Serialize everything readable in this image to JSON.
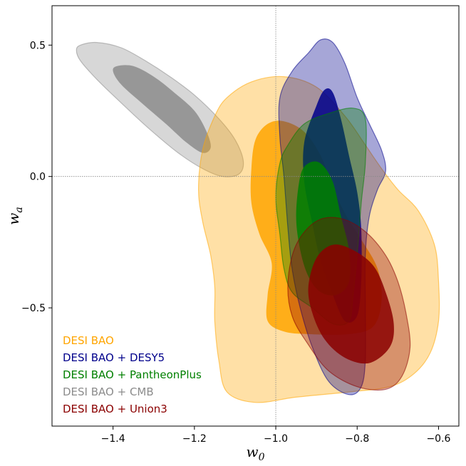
{
  "chart_data": {
    "type": "contour",
    "title": "",
    "xlabel": "w_0",
    "ylabel": "w_a",
    "xlim": [
      -1.55,
      -0.55
    ],
    "ylim": [
      -0.95,
      0.65
    ],
    "xticks": [
      {
        "value": -1.4,
        "label": "−1.4"
      },
      {
        "value": -1.2,
        "label": "−1.2"
      },
      {
        "value": -1.0,
        "label": "−1.0"
      },
      {
        "value": -0.8,
        "label": "−0.8"
      },
      {
        "value": -0.6,
        "label": "−0.6"
      }
    ],
    "yticks": [
      {
        "value": 0.5,
        "label": "0.5"
      },
      {
        "value": 0.0,
        "label": "0.0"
      },
      {
        "value": -0.5,
        "label": "−0.5"
      }
    ],
    "reference_lines": {
      "x": -1.0,
      "y": 0.0
    },
    "legend_position": "bottom-left",
    "series": [
      {
        "name": "DESI BAO + CMB",
        "color": "#8c8c8c",
        "outer_contour": [
          [
            -1.48,
            0.5
          ],
          [
            -1.44,
            0.51
          ],
          [
            -1.38,
            0.49
          ],
          [
            -1.32,
            0.44
          ],
          [
            -1.26,
            0.38
          ],
          [
            -1.2,
            0.31
          ],
          [
            -1.14,
            0.22
          ],
          [
            -1.1,
            0.14
          ],
          [
            -1.08,
            0.06
          ],
          [
            -1.09,
            0.01
          ],
          [
            -1.13,
            0.0
          ],
          [
            -1.18,
            0.03
          ],
          [
            -1.24,
            0.09
          ],
          [
            -1.31,
            0.18
          ],
          [
            -1.38,
            0.28
          ],
          [
            -1.44,
            0.37
          ],
          [
            -1.48,
            0.44
          ],
          [
            -1.49,
            0.48
          ]
        ],
        "inner_contour": [
          [
            -1.39,
            0.42
          ],
          [
            -1.35,
            0.42
          ],
          [
            -1.3,
            0.38
          ],
          [
            -1.25,
            0.32
          ],
          [
            -1.2,
            0.25
          ],
          [
            -1.17,
            0.17
          ],
          [
            -1.16,
            0.11
          ],
          [
            -1.18,
            0.09
          ],
          [
            -1.22,
            0.13
          ],
          [
            -1.27,
            0.2
          ],
          [
            -1.33,
            0.28
          ],
          [
            -1.38,
            0.35
          ],
          [
            -1.4,
            0.4
          ]
        ]
      },
      {
        "name": "DESI BAO",
        "color": "#ffa500",
        "outer_contour": [
          [
            -1.12,
            0.3
          ],
          [
            -1.06,
            0.36
          ],
          [
            -0.98,
            0.38
          ],
          [
            -0.9,
            0.34
          ],
          [
            -0.83,
            0.23
          ],
          [
            -0.78,
            0.12
          ],
          [
            -0.74,
            0.03
          ],
          [
            -0.7,
            -0.05
          ],
          [
            -0.65,
            -0.13
          ],
          [
            -0.61,
            -0.26
          ],
          [
            -0.6,
            -0.4
          ],
          [
            -0.6,
            -0.55
          ],
          [
            -0.62,
            -0.67
          ],
          [
            -0.66,
            -0.75
          ],
          [
            -0.72,
            -0.8
          ],
          [
            -0.82,
            -0.82
          ],
          [
            -0.95,
            -0.84
          ],
          [
            -1.05,
            -0.86
          ],
          [
            -1.12,
            -0.82
          ],
          [
            -1.14,
            -0.7
          ],
          [
            -1.15,
            -0.55
          ],
          [
            -1.15,
            -0.42
          ],
          [
            -1.16,
            -0.3
          ],
          [
            -1.18,
            -0.17
          ],
          [
            -1.19,
            -0.05
          ],
          [
            -1.18,
            0.1
          ],
          [
            -1.15,
            0.23
          ]
        ],
        "inner_contour": [
          [
            -1.02,
            0.2
          ],
          [
            -0.98,
            0.21
          ],
          [
            -0.93,
            0.17
          ],
          [
            -0.89,
            0.08
          ],
          [
            -0.86,
            -0.04
          ],
          [
            -0.83,
            -0.14
          ],
          [
            -0.79,
            -0.24
          ],
          [
            -0.75,
            -0.35
          ],
          [
            -0.74,
            -0.47
          ],
          [
            -0.76,
            -0.57
          ],
          [
            -0.82,
            -0.6
          ],
          [
            -0.92,
            -0.6
          ],
          [
            -0.98,
            -0.59
          ],
          [
            -1.02,
            -0.55
          ],
          [
            -1.02,
            -0.45
          ],
          [
            -1.01,
            -0.33
          ],
          [
            -1.04,
            -0.22
          ],
          [
            -1.06,
            -0.1
          ],
          [
            -1.06,
            0.03
          ],
          [
            -1.05,
            0.14
          ]
        ]
      },
      {
        "name": "DESI BAO + DESY5",
        "color": "#00008b",
        "outer_contour": [
          [
            -0.92,
            0.47
          ],
          [
            -0.89,
            0.52
          ],
          [
            -0.86,
            0.51
          ],
          [
            -0.83,
            0.43
          ],
          [
            -0.8,
            0.3
          ],
          [
            -0.77,
            0.2
          ],
          [
            -0.74,
            0.1
          ],
          [
            -0.73,
            0.02
          ],
          [
            -0.75,
            -0.05
          ],
          [
            -0.77,
            -0.15
          ],
          [
            -0.78,
            -0.3
          ],
          [
            -0.78,
            -0.5
          ],
          [
            -0.78,
            -0.7
          ],
          [
            -0.79,
            -0.8
          ],
          [
            -0.82,
            -0.83
          ],
          [
            -0.87,
            -0.78
          ],
          [
            -0.91,
            -0.65
          ],
          [
            -0.94,
            -0.5
          ],
          [
            -0.96,
            -0.35
          ],
          [
            -0.97,
            -0.2
          ],
          [
            -0.98,
            0.0
          ],
          [
            -0.99,
            0.15
          ],
          [
            -0.99,
            0.3
          ],
          [
            -0.96,
            0.4
          ]
        ],
        "inner_contour": [
          [
            -0.9,
            0.27
          ],
          [
            -0.88,
            0.33
          ],
          [
            -0.86,
            0.32
          ],
          [
            -0.84,
            0.22
          ],
          [
            -0.82,
            0.08
          ],
          [
            -0.8,
            -0.06
          ],
          [
            -0.79,
            -0.2
          ],
          [
            -0.79,
            -0.4
          ],
          [
            -0.8,
            -0.53
          ],
          [
            -0.83,
            -0.55
          ],
          [
            -0.86,
            -0.45
          ],
          [
            -0.89,
            -0.32
          ],
          [
            -0.91,
            -0.18
          ],
          [
            -0.93,
            -0.02
          ],
          [
            -0.93,
            0.13
          ]
        ]
      },
      {
        "name": "DESI BAO + PantheonPlus",
        "color": "#008000",
        "outer_contour": [
          [
            -0.97,
            0.12
          ],
          [
            -0.93,
            0.2
          ],
          [
            -0.87,
            0.24
          ],
          [
            -0.81,
            0.26
          ],
          [
            -0.78,
            0.22
          ],
          [
            -0.78,
            0.05
          ],
          [
            -0.79,
            -0.1
          ],
          [
            -0.8,
            -0.3
          ],
          [
            -0.81,
            -0.45
          ],
          [
            -0.82,
            -0.55
          ],
          [
            -0.86,
            -0.56
          ],
          [
            -0.91,
            -0.5
          ],
          [
            -0.96,
            -0.44
          ],
          [
            -0.98,
            -0.35
          ],
          [
            -0.99,
            -0.22
          ],
          [
            -1.0,
            -0.08
          ],
          [
            -0.99,
            0.05
          ]
        ],
        "inner_contour": [
          [
            -0.94,
            0.0
          ],
          [
            -0.92,
            0.05
          ],
          [
            -0.89,
            0.05
          ],
          [
            -0.86,
            -0.02
          ],
          [
            -0.84,
            -0.15
          ],
          [
            -0.82,
            -0.28
          ],
          [
            -0.82,
            -0.4
          ],
          [
            -0.85,
            -0.45
          ],
          [
            -0.89,
            -0.44
          ],
          [
            -0.92,
            -0.38
          ],
          [
            -0.94,
            -0.28
          ],
          [
            -0.95,
            -0.15
          ]
        ]
      },
      {
        "name": "DESI BAO + Union3",
        "color": "#8b0000",
        "outer_contour": [
          [
            -0.95,
            -0.26
          ],
          [
            -0.9,
            -0.17
          ],
          [
            -0.84,
            -0.16
          ],
          [
            -0.78,
            -0.21
          ],
          [
            -0.73,
            -0.3
          ],
          [
            -0.7,
            -0.4
          ],
          [
            -0.68,
            -0.52
          ],
          [
            -0.67,
            -0.65
          ],
          [
            -0.69,
            -0.76
          ],
          [
            -0.73,
            -0.81
          ],
          [
            -0.8,
            -0.8
          ],
          [
            -0.87,
            -0.74
          ],
          [
            -0.92,
            -0.64
          ],
          [
            -0.96,
            -0.53
          ],
          [
            -0.97,
            -0.4
          ]
        ],
        "inner_contour": [
          [
            -0.9,
            -0.31
          ],
          [
            -0.86,
            -0.26
          ],
          [
            -0.81,
            -0.28
          ],
          [
            -0.76,
            -0.34
          ],
          [
            -0.73,
            -0.44
          ],
          [
            -0.71,
            -0.56
          ],
          [
            -0.72,
            -0.65
          ],
          [
            -0.77,
            -0.71
          ],
          [
            -0.83,
            -0.69
          ],
          [
            -0.88,
            -0.62
          ],
          [
            -0.91,
            -0.52
          ],
          [
            -0.92,
            -0.42
          ]
        ]
      }
    ],
    "legend": [
      {
        "label": "DESI BAO",
        "color": "#ffa500"
      },
      {
        "label": "DESI BAO + DESY5",
        "color": "#00008b"
      },
      {
        "label": "DESI BAO + PantheonPlus",
        "color": "#008000"
      },
      {
        "label": "DESI BAO + CMB",
        "color": "#8c8c8c"
      },
      {
        "label": "DESI BAO + Union3",
        "color": "#8b0000"
      }
    ]
  }
}
